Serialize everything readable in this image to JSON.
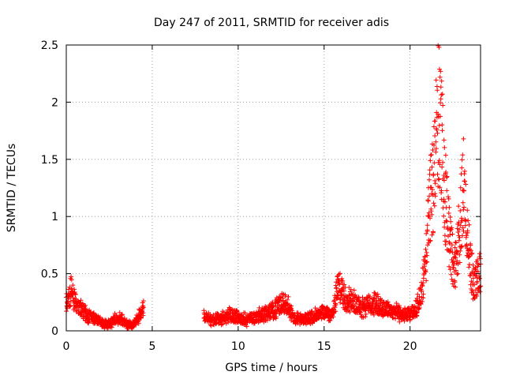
{
  "chart_data": {
    "type": "scatter",
    "title": "Day 247 of 2011, SRMTID for receiver adis",
    "xlabel": "GPS time / hours",
    "ylabel": "SRMTID / TECUs",
    "xlim": [
      0,
      24.1
    ],
    "ylim": [
      0,
      2.5
    ],
    "xticks": [
      0,
      5,
      10,
      15,
      20
    ],
    "xtick_labels": [
      "0",
      "5",
      "10",
      "15",
      "20"
    ],
    "yticks": [
      0,
      0.5,
      1,
      1.5,
      2,
      2.5
    ],
    "ytick_labels": [
      "0",
      "0.5",
      "1",
      "1.5",
      "2",
      "2.5"
    ],
    "grid": true,
    "marker": "+",
    "series": [
      {
        "name": "SRMTID",
        "color": "#ff0000",
        "segments": [
          {
            "x_start": 0.0,
            "x_end": 4.5,
            "profile": [
              [
                0.0,
                0.24
              ],
              [
                0.15,
                0.3
              ],
              [
                0.3,
                0.36
              ],
              [
                0.5,
                0.26
              ],
              [
                0.8,
                0.2
              ],
              [
                1.2,
                0.14
              ],
              [
                1.6,
                0.12
              ],
              [
                2.0,
                0.08
              ],
              [
                2.4,
                0.06
              ],
              [
                2.8,
                0.1
              ],
              [
                3.2,
                0.12
              ],
              [
                3.6,
                0.05
              ],
              [
                4.0,
                0.08
              ],
              [
                4.3,
                0.14
              ],
              [
                4.5,
                0.22
              ]
            ]
          },
          {
            "x_start": 8.0,
            "x_end": 24.1,
            "profile": [
              [
                8.0,
                0.12
              ],
              [
                8.5,
                0.1
              ],
              [
                9.0,
                0.11
              ],
              [
                9.5,
                0.14
              ],
              [
                10.0,
                0.12
              ],
              [
                10.5,
                0.1
              ],
              [
                11.0,
                0.13
              ],
              [
                11.5,
                0.15
              ],
              [
                12.0,
                0.18
              ],
              [
                12.5,
                0.24
              ],
              [
                12.8,
                0.26
              ],
              [
                13.2,
                0.12
              ],
              [
                13.8,
                0.1
              ],
              [
                14.5,
                0.14
              ],
              [
                15.0,
                0.16
              ],
              [
                15.5,
                0.15
              ],
              [
                15.8,
                0.4
              ],
              [
                16.2,
                0.3
              ],
              [
                16.8,
                0.25
              ],
              [
                17.2,
                0.22
              ],
              [
                18.0,
                0.24
              ],
              [
                18.5,
                0.2
              ],
              [
                19.0,
                0.18
              ],
              [
                19.5,
                0.15
              ],
              [
                20.0,
                0.14
              ],
              [
                20.3,
                0.18
              ],
              [
                20.6,
                0.3
              ],
              [
                20.9,
                0.55
              ],
              [
                21.1,
                1.05
              ],
              [
                21.3,
                1.25
              ],
              [
                21.5,
                1.6
              ],
              [
                21.7,
                2.0
              ],
              [
                21.8,
                1.7
              ],
              [
                22.0,
                1.3
              ],
              [
                22.3,
                0.8
              ],
              [
                22.6,
                0.55
              ],
              [
                22.9,
                0.9
              ],
              [
                23.1,
                1.25
              ],
              [
                23.4,
                0.75
              ],
              [
                23.7,
                0.4
              ],
              [
                24.1,
                0.55
              ]
            ]
          }
        ],
        "spread": 0.35,
        "point_spacing_hours": 0.02
      }
    ]
  }
}
